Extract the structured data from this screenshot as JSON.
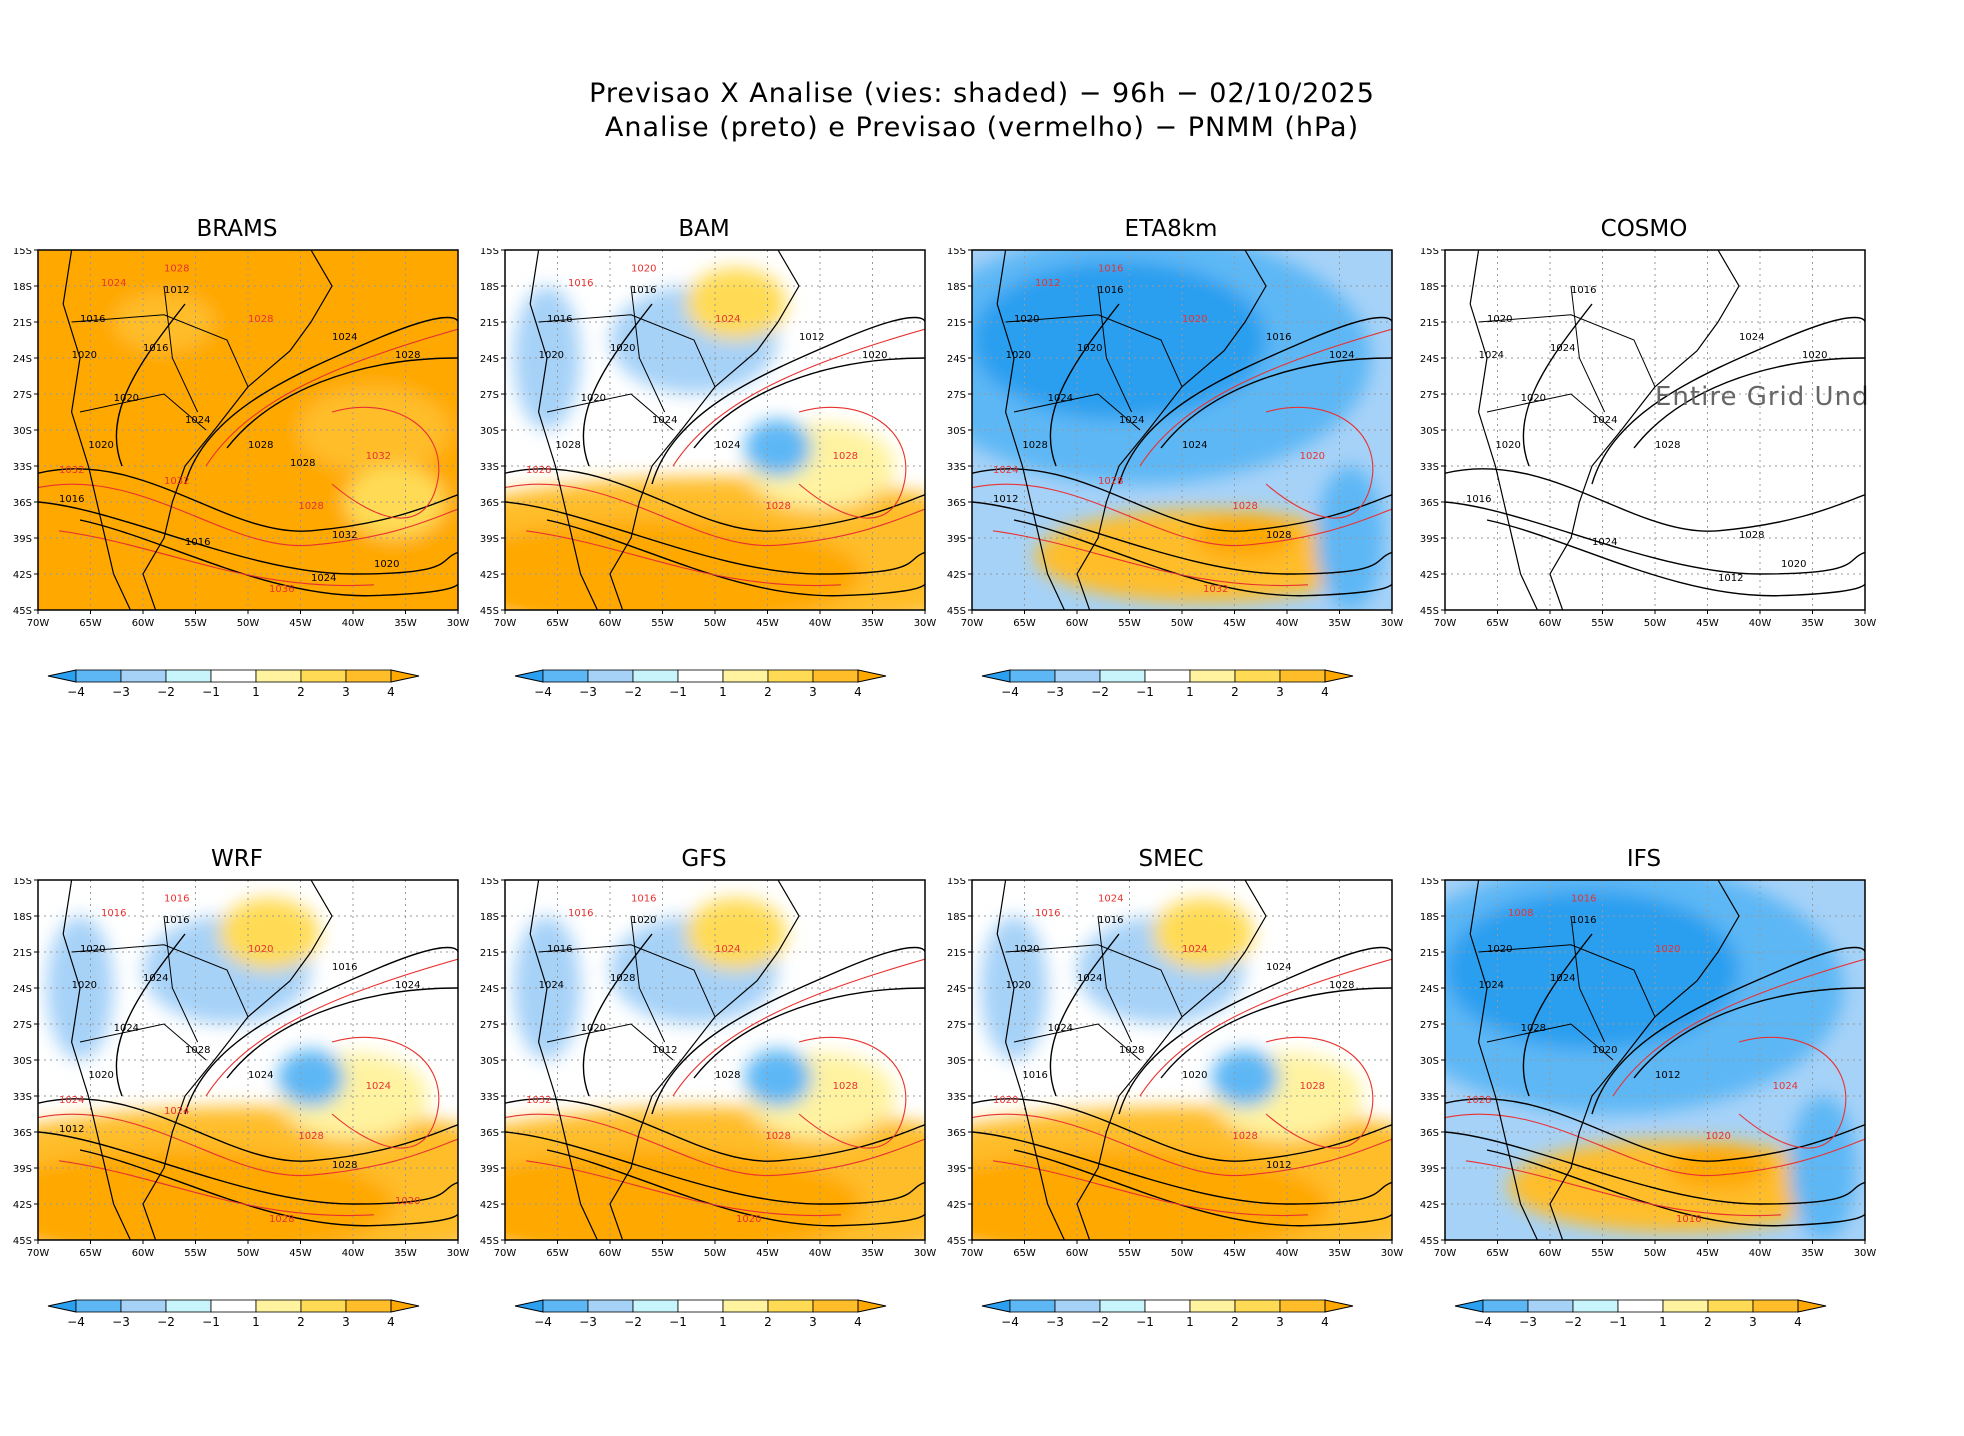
{
  "header": {
    "title_line1": "Previsao X Analise (vies: shaded) − 96h − 02/10/2025",
    "title_line2": "Analise (preto) e Previsao (vermelho) − PNMM (hPa)"
  },
  "axes": {
    "lat_labels": [
      "15S",
      "18S",
      "21S",
      "24S",
      "27S",
      "30S",
      "33S",
      "36S",
      "39S",
      "42S",
      "45S"
    ],
    "lon_labels": [
      "70W",
      "65W",
      "60W",
      "55W",
      "50W",
      "45W",
      "40W",
      "35W",
      "30W"
    ]
  },
  "colorbar": {
    "ticks": [
      "−4",
      "−3",
      "−2",
      "−1",
      "1",
      "2",
      "3",
      "4"
    ],
    "colors": [
      "#2b9ff0",
      "#5db7f5",
      "#a6d2f8",
      "#c8f4fb",
      "#ffffff",
      "#fff3a0",
      "#ffdb55",
      "#ffbd2a",
      "#ffa800"
    ]
  },
  "colors": {
    "analysis_contour": "#000000",
    "forecast_contour": "#e83232",
    "coast": "#000000",
    "grid": "#999999"
  },
  "panels": [
    {
      "model": "BRAMS",
      "bias": "warm",
      "no_data_note": "",
      "analysis_labels": [
        "1012",
        "1016",
        "1020",
        "1016",
        "1020",
        "1024",
        "1028",
        "1020",
        "1024",
        "1028",
        "1032",
        "1016",
        "1016",
        "1020",
        "1024",
        "1028"
      ],
      "forecast_labels": [
        "1024",
        "1028",
        "1028",
        "1032",
        "1032",
        "1028",
        "1036",
        "1032"
      ]
    },
    {
      "model": "BAM",
      "bias": "mixed",
      "no_data_note": "",
      "analysis_labels": [
        "1016",
        "1016",
        "1020",
        "1020",
        "1020",
        "1024",
        "1024",
        "1028",
        "1012",
        "1020"
      ],
      "forecast_labels": [
        "1016",
        "1020",
        "1024",
        "1028",
        "1028",
        "1028"
      ]
    },
    {
      "model": "ETA8km",
      "bias": "cold",
      "no_data_note": "",
      "analysis_labels": [
        "1016",
        "1020",
        "1020",
        "1020",
        "1024",
        "1024",
        "1024",
        "1028",
        "1016",
        "1024",
        "1028",
        "1012"
      ],
      "forecast_labels": [
        "1012",
        "1016",
        "1020",
        "1020",
        "1024",
        "1028",
        "1032",
        "1028"
      ]
    },
    {
      "model": "COSMO",
      "bias": "none",
      "no_data_note": "Entire Grid Und",
      "analysis_labels": [
        "1016",
        "1020",
        "1024",
        "1024",
        "1020",
        "1024",
        "1028",
        "1020",
        "1024",
        "1020",
        "1028",
        "1016",
        "1024",
        "1020",
        "1012"
      ],
      "forecast_labels": []
    },
    {
      "model": "WRF",
      "bias": "mixed",
      "no_data_note": "",
      "analysis_labels": [
        "1016",
        "1020",
        "1020",
        "1024",
        "1024",
        "1028",
        "1024",
        "1020",
        "1016",
        "1024",
        "1028",
        "1012"
      ],
      "forecast_labels": [
        "1016",
        "1016",
        "1020",
        "1024",
        "1024",
        "1028",
        "1028",
        "1024",
        "1020"
      ]
    },
    {
      "model": "GFS",
      "bias": "mixed",
      "no_data_note": "",
      "analysis_labels": [
        "1020",
        "1016",
        "1024",
        "1028",
        "1020",
        "1012",
        "1028"
      ],
      "forecast_labels": [
        "1016",
        "1016",
        "1024",
        "1028",
        "1032",
        "1028",
        "1020"
      ]
    },
    {
      "model": "SMEC",
      "bias": "mixed",
      "no_data_note": "",
      "analysis_labels": [
        "1016",
        "1020",
        "1020",
        "1024",
        "1024",
        "1028",
        "1020",
        "1016",
        "1024",
        "1028",
        "1012"
      ],
      "forecast_labels": [
        "1016",
        "1024",
        "1024",
        "1028",
        "1020",
        "1028"
      ]
    },
    {
      "model": "IFS",
      "bias": "cold",
      "no_data_note": "",
      "analysis_labels": [
        "1016",
        "1020",
        "1024",
        "1024",
        "1028",
        "1020",
        "1012"
      ],
      "forecast_labels": [
        "1008",
        "1016",
        "1020",
        "1024",
        "1028",
        "1020",
        "1016"
      ]
    }
  ]
}
